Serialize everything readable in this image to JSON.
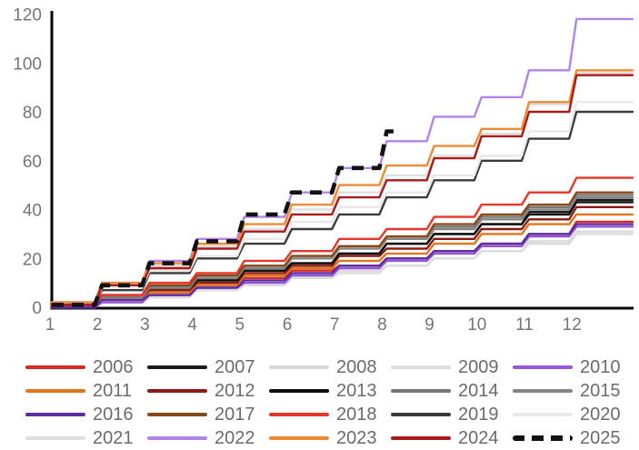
{
  "chart_data": {
    "type": "line",
    "title": "",
    "xlabel": "",
    "ylabel": "",
    "x_tick_labels": [
      "1",
      "2",
      "3",
      "4",
      "5",
      "6",
      "7",
      "8",
      "9",
      "10",
      "11",
      "12"
    ],
    "y_tick_values": [
      0,
      20,
      40,
      60,
      80,
      100,
      120
    ],
    "ylim": [
      0,
      120
    ],
    "xlim": [
      1,
      13.2
    ],
    "grid": false,
    "legend_position": "bottom",
    "axis_color": "#000000",
    "tick_label_color": "#757575",
    "series": [
      {
        "name": "2006",
        "color": "#d62a23",
        "style": "solid",
        "values": [
          0,
          3,
          6,
          9,
          12,
          15,
          17,
          20,
          23,
          26,
          30,
          35
        ]
      },
      {
        "name": "2007",
        "color": "#1a1a1a",
        "style": "solid",
        "values": [
          1,
          4,
          8,
          11,
          15,
          18,
          22,
          26,
          30,
          34,
          39,
          44
        ]
      },
      {
        "name": "2008",
        "color": "#d9d9d9",
        "style": "solid",
        "values": [
          0,
          2,
          5,
          7,
          10,
          12,
          15,
          17,
          20,
          23,
          27,
          31
        ]
      },
      {
        "name": "2009",
        "color": "#dcdcdc",
        "style": "solid",
        "values": [
          0,
          2,
          4,
          7,
          9,
          12,
          14,
          17,
          20,
          23,
          26,
          30
        ]
      },
      {
        "name": "2010",
        "color": "#9557d8",
        "style": "solid",
        "values": [
          0,
          2,
          5,
          8,
          10,
          13,
          16,
          19,
          22,
          25,
          29,
          33
        ]
      },
      {
        "name": "2011",
        "color": "#e1751c",
        "style": "solid",
        "values": [
          1,
          3,
          6,
          9,
          13,
          16,
          19,
          22,
          26,
          30,
          34,
          38
        ]
      },
      {
        "name": "2012",
        "color": "#8b1a13",
        "style": "solid",
        "values": [
          1,
          4,
          7,
          10,
          14,
          17,
          21,
          24,
          28,
          32,
          36,
          41
        ]
      },
      {
        "name": "2013",
        "color": "#0d0d0d",
        "style": "solid",
        "values": [
          1,
          4,
          8,
          11,
          15,
          18,
          22,
          26,
          30,
          34,
          38,
          43
        ]
      },
      {
        "name": "2014",
        "color": "#767676",
        "style": "solid",
        "values": [
          1,
          5,
          9,
          13,
          17,
          21,
          25,
          29,
          33,
          37,
          41,
          46
        ]
      },
      {
        "name": "2015",
        "color": "#858585",
        "style": "solid",
        "values": [
          1,
          4,
          8,
          12,
          16,
          20,
          24,
          28,
          32,
          36,
          40,
          45
        ]
      },
      {
        "name": "2016",
        "color": "#5c2d9e",
        "style": "solid",
        "values": [
          0,
          3,
          5,
          8,
          11,
          14,
          17,
          20,
          23,
          26,
          30,
          34
        ]
      },
      {
        "name": "2017",
        "color": "#8a4a15",
        "style": "solid",
        "values": [
          1,
          5,
          9,
          13,
          17,
          21,
          25,
          29,
          34,
          38,
          42,
          47
        ]
      },
      {
        "name": "2018",
        "color": "#e73529",
        "style": "solid",
        "values": [
          1,
          5,
          10,
          14,
          19,
          23,
          28,
          32,
          37,
          42,
          47,
          53
        ]
      },
      {
        "name": "2019",
        "color": "#3b3b3b",
        "style": "solid",
        "values": [
          2,
          7,
          14,
          20,
          26,
          32,
          38,
          45,
          52,
          60,
          69,
          80
        ]
      },
      {
        "name": "2020",
        "color": "#e9e9e9",
        "style": "solid",
        "values": [
          2,
          8,
          15,
          21,
          28,
          35,
          41,
          47,
          54,
          62,
          72,
          84
        ]
      },
      {
        "name": "2021",
        "color": "#e0dfdf",
        "style": "solid",
        "values": [
          2,
          9,
          17,
          25,
          32,
          40,
          47,
          54,
          62,
          71,
          83,
          96
        ]
      },
      {
        "name": "2022",
        "color": "#b284e8",
        "style": "solid",
        "values": [
          2,
          10,
          19,
          28,
          37,
          47,
          57,
          68,
          78,
          86,
          97,
          118
        ]
      },
      {
        "name": "2023",
        "color": "#ee8a33",
        "style": "solid",
        "values": [
          2,
          10,
          18,
          26,
          34,
          42,
          50,
          58,
          66,
          73,
          84,
          97
        ]
      },
      {
        "name": "2024",
        "color": "#a91b18",
        "style": "solid",
        "values": [
          1,
          9,
          16,
          24,
          31,
          38,
          45,
          52,
          61,
          70,
          80,
          95
        ]
      },
      {
        "name": "2025",
        "color": "#111111",
        "style": "dashed",
        "values": [
          1,
          9,
          18,
          27,
          38,
          47,
          57,
          72
        ]
      }
    ]
  }
}
